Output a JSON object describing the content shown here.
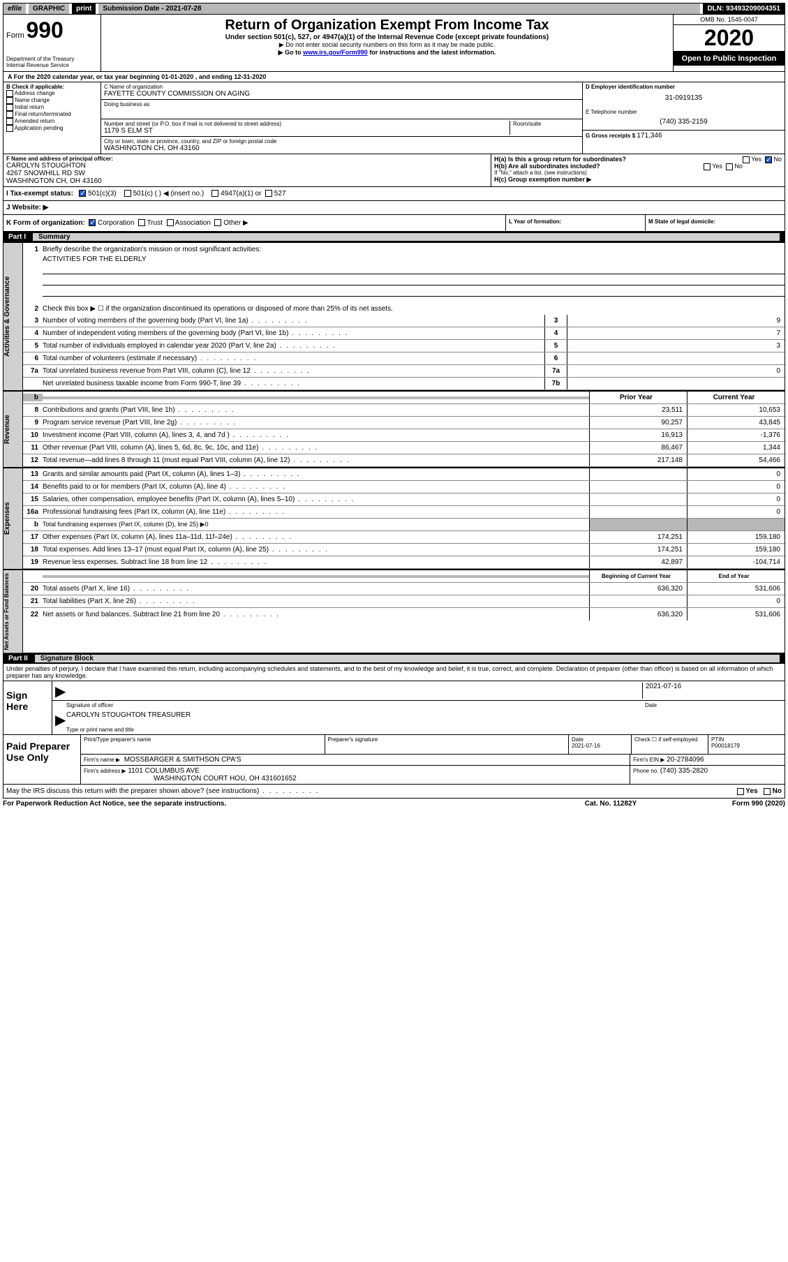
{
  "topbar": {
    "efile": "efile",
    "graphic": "GRAPHIC",
    "print": "print",
    "subdate_label": "Submission Date - ",
    "subdate_value": "2021-07-28",
    "dln_label": "DLN: ",
    "dln_value": "93493209004351"
  },
  "header": {
    "form_label": "Form",
    "form_no": "990",
    "dept": "Department of the Treasury\nInternal Revenue Service",
    "title": "Return of Organization Exempt From Income Tax",
    "subtitle": "Under section 501(c), 527, or 4947(a)(1) of the Internal Revenue Code (except private foundations)",
    "instr1": "▶ Do not enter social security numbers on this form as it may be made public.",
    "instr2_pre": "▶ Go to ",
    "instr2_link": "www.irs.gov/Form990",
    "instr2_post": " for instructions and the latest information.",
    "omb": "OMB No. 1545-0047",
    "year": "2020",
    "open": "Open to Public Inspection"
  },
  "ty": {
    "text_pre": "A For the 2020 calendar year, or tax year beginning ",
    "begin": "01-01-2020",
    "text_mid": "  , and ending ",
    "end": "12-31-2020"
  },
  "blockB": {
    "header": "B Check if applicable:",
    "items": [
      "Address change",
      "Name change",
      "Initial return",
      "Final return/terminated",
      "Amended return",
      "Application pending"
    ]
  },
  "blockC": {
    "name_label": "C Name of organization",
    "name": "FAYETTE COUNTY COMMISSION ON AGING",
    "dba_label": "Doing business as",
    "street_label": "Number and street (or P.O. box if mail is not delivered to street address)",
    "room_label": "Room/suite",
    "street": "1179 S ELM ST",
    "city_label": "City or town, state or province, country, and ZIP or foreign postal code",
    "city": "WASHINGTON CH, OH  43160"
  },
  "blockDE": {
    "d_label": "D Employer identification number",
    "d_value": "31-0919135",
    "e_label": "E Telephone number",
    "e_value": "(740) 335-2159",
    "g_label": "G Gross receipts $ ",
    "g_value": "171,346"
  },
  "blockF": {
    "label": "F  Name and address of principal officer:",
    "name": "CAROLYN STOUGHTON",
    "addr1": "4267 SNOWHILL RD SW",
    "addr2": "WASHINGTON CH, OH  43160"
  },
  "blockH": {
    "ha": "H(a)  Is this a group return for subordinates?",
    "hb": "H(b)  Are all subordinates included?",
    "hb_note": "If \"No,\" attach a list. (see instructions)",
    "hc": "H(c)  Group exemption number ▶",
    "yes": "Yes",
    "no": "No"
  },
  "blockI": {
    "label": "I   Tax-exempt status:",
    "opt1": "501(c)(3)",
    "opt2": "501(c) (  ) ◀ (insert no.)",
    "opt3": "4947(a)(1) or",
    "opt4": "527"
  },
  "blockJ": {
    "label": "J   Website: ▶"
  },
  "blockK": {
    "label": "K Form of organization:",
    "opts": [
      "Corporation",
      "Trust",
      "Association",
      "Other ▶"
    ]
  },
  "blockL": {
    "label": "L Year of formation:"
  },
  "blockM": {
    "label": "M State of legal domicile:"
  },
  "part1": {
    "num": "Part I",
    "title": "Summary"
  },
  "summary": {
    "sec1_label": "Activities & Governance",
    "line1": "Briefly describe the organization's mission or most significant activities:",
    "line1_val": "ACTIVITIES FOR THE ELDERLY",
    "line2": "Check this box ▶ ☐  if the organization discontinued its operations or disposed of more than 25% of its net assets.",
    "rows_a": [
      {
        "n": "3",
        "t": "Number of voting members of the governing body (Part VI, line 1a)",
        "box": "3",
        "v": "9"
      },
      {
        "n": "4",
        "t": "Number of independent voting members of the governing body (Part VI, line 1b)",
        "box": "4",
        "v": "7"
      },
      {
        "n": "5",
        "t": "Total number of individuals employed in calendar year 2020 (Part V, line 2a)",
        "box": "5",
        "v": "3"
      },
      {
        "n": "6",
        "t": "Total number of volunteers (estimate if necessary)",
        "box": "6",
        "v": ""
      },
      {
        "n": "7a",
        "t": "Total unrelated business revenue from Part VIII, column (C), line 12",
        "box": "7a",
        "v": "0"
      },
      {
        "n": "",
        "t": "Net unrelated business taxable income from Form 990-T, line 39",
        "box": "7b",
        "v": ""
      }
    ],
    "sec2_label": "Revenue",
    "hdr_prior": "Prior Year",
    "hdr_current": "Current Year",
    "rows_r": [
      {
        "n": "8",
        "t": "Contributions and grants (Part VIII, line 1h)",
        "p": "23,511",
        "c": "10,653"
      },
      {
        "n": "9",
        "t": "Program service revenue (Part VIII, line 2g)",
        "p": "90,257",
        "c": "43,845"
      },
      {
        "n": "10",
        "t": "Investment income (Part VIII, column (A), lines 3, 4, and 7d )",
        "p": "16,913",
        "c": "-1,376"
      },
      {
        "n": "11",
        "t": "Other revenue (Part VIII, column (A), lines 5, 6d, 8c, 9c, 10c, and 11e)",
        "p": "86,467",
        "c": "1,344"
      },
      {
        "n": "12",
        "t": "Total revenue—add lines 8 through 11 (must equal Part VIII, column (A), line 12)",
        "p": "217,148",
        "c": "54,466"
      }
    ],
    "sec3_label": "Expenses",
    "rows_e": [
      {
        "n": "13",
        "t": "Grants and similar amounts paid (Part IX, column (A), lines 1–3)",
        "p": "",
        "c": "0"
      },
      {
        "n": "14",
        "t": "Benefits paid to or for members (Part IX, column (A), line 4)",
        "p": "",
        "c": "0"
      },
      {
        "n": "15",
        "t": "Salaries, other compensation, employee benefits (Part IX, column (A), lines 5–10)",
        "p": "",
        "c": "0"
      },
      {
        "n": "16a",
        "t": "Professional fundraising fees (Part IX, column (A), line 11e)",
        "p": "",
        "c": "0"
      },
      {
        "n": "b",
        "t": "Total fundraising expenses (Part IX, column (D), line 25) ▶0",
        "p": "SHADE",
        "c": "SHADE"
      },
      {
        "n": "17",
        "t": "Other expenses (Part IX, column (A), lines 11a–11d, 11f–24e)",
        "p": "174,251",
        "c": "159,180"
      },
      {
        "n": "18",
        "t": "Total expenses. Add lines 13–17 (must equal Part IX, column (A), line 25)",
        "p": "174,251",
        "c": "159,180"
      },
      {
        "n": "19",
        "t": "Revenue less expenses. Subtract line 18 from line 12",
        "p": "42,897",
        "c": "-104,714"
      }
    ],
    "sec4_label": "Net Assets or Fund Balances",
    "hdr_begin": "Beginning of Current Year",
    "hdr_end": "End of Year",
    "rows_n": [
      {
        "n": "20",
        "t": "Total assets (Part X, line 16)",
        "p": "636,320",
        "c": "531,606"
      },
      {
        "n": "21",
        "t": "Total liabilities (Part X, line 26)",
        "p": "",
        "c": "0"
      },
      {
        "n": "22",
        "t": "Net assets or fund balances. Subtract line 21 from line 20",
        "p": "636,320",
        "c": "531,606"
      }
    ]
  },
  "part2": {
    "num": "Part II",
    "title": "Signature Block"
  },
  "penalties": "Under penalties of perjury, I declare that I have examined this return, including accompanying schedules and statements, and to the best of my knowledge and belief, it is true, correct, and complete. Declaration of preparer (other than officer) is based on all information of which preparer has any knowledge.",
  "sign": {
    "label": "Sign Here",
    "sig_officer": "Signature of officer",
    "date_label": "Date",
    "date": "2021-07-16",
    "name": "CAROLYN STOUGHTON  TREASURER",
    "name_label": "Type or print name and title"
  },
  "prep": {
    "label": "Paid Preparer Use Only",
    "c1": "Print/Type preparer's name",
    "c2": "Preparer's signature",
    "c3_label": "Date",
    "c3": "2021-07-16",
    "c4": "Check ☐  if self-employed",
    "c5_label": "PTIN",
    "c5": "P00018179",
    "firm_label": "Firm's name      ▶",
    "firm": "MOSSBARGER & SMITHSON CPA'S",
    "ein_label": "Firm's EIN ▶",
    "ein": "20-2784096",
    "addr_label": "Firm's address  ▶",
    "addr1": "1101 COLUMBUS AVE",
    "addr2": "WASHINGTON COURT HOU, OH  431601652",
    "phone_label": "Phone no. ",
    "phone": "(740) 335-2820"
  },
  "footer": {
    "discuss": "May the IRS discuss this return with the preparer shown above? (see instructions)",
    "yes": "Yes",
    "no": "No",
    "notice": "For Paperwork Reduction Act Notice, see the separate instructions.",
    "cat": "Cat. No. 11282Y",
    "form": "Form 990 (2020)"
  },
  "colors": {
    "black": "#000000",
    "gray": "#b8b8b8",
    "lightgray": "#d0d0d0",
    "link": "#0000cc",
    "check": "#2050c0"
  }
}
